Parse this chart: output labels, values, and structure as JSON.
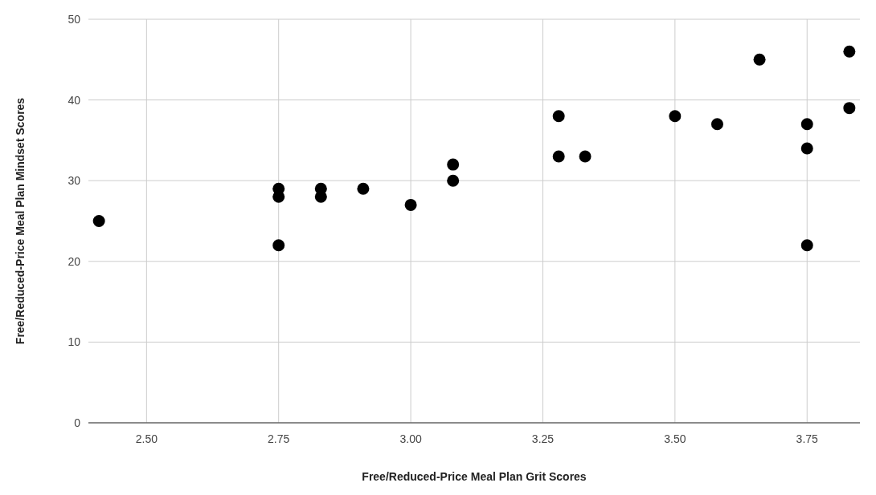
{
  "chart_data": {
    "type": "scatter",
    "xlabel": "Free/Reduced-Price Meal Plan Grit Scores",
    "ylabel": "Free/Reduced-Price Meal Plan Mindset Scores",
    "xlim": [
      2.39,
      3.85
    ],
    "ylim": [
      0,
      50
    ],
    "xticks": [
      {
        "value": 2.5,
        "label": "2.50"
      },
      {
        "value": 2.75,
        "label": "2.75"
      },
      {
        "value": 3,
        "label": "3.00"
      },
      {
        "value": 3.25,
        "label": "3.25"
      },
      {
        "value": 3.5,
        "label": "3.50"
      },
      {
        "value": 3.75,
        "label": "3.75"
      }
    ],
    "yticks": [
      0,
      10,
      20,
      30,
      40,
      50
    ],
    "grid": true,
    "marker": "circle",
    "series": [
      {
        "color": "#000000",
        "x": [
          2.41,
          2.75,
          2.75,
          2.75,
          2.83,
          2.83,
          2.91,
          3.0,
          3.08,
          3.08,
          3.28,
          3.28,
          3.33,
          3.5,
          3.58,
          3.66,
          3.75,
          3.75,
          3.75,
          3.83,
          3.83
        ],
        "values": [
          25,
          29,
          28,
          22,
          29,
          28,
          29,
          27,
          32,
          30,
          38,
          33,
          33,
          38,
          37,
          45,
          37,
          34,
          22,
          46,
          39
        ]
      }
    ]
  }
}
